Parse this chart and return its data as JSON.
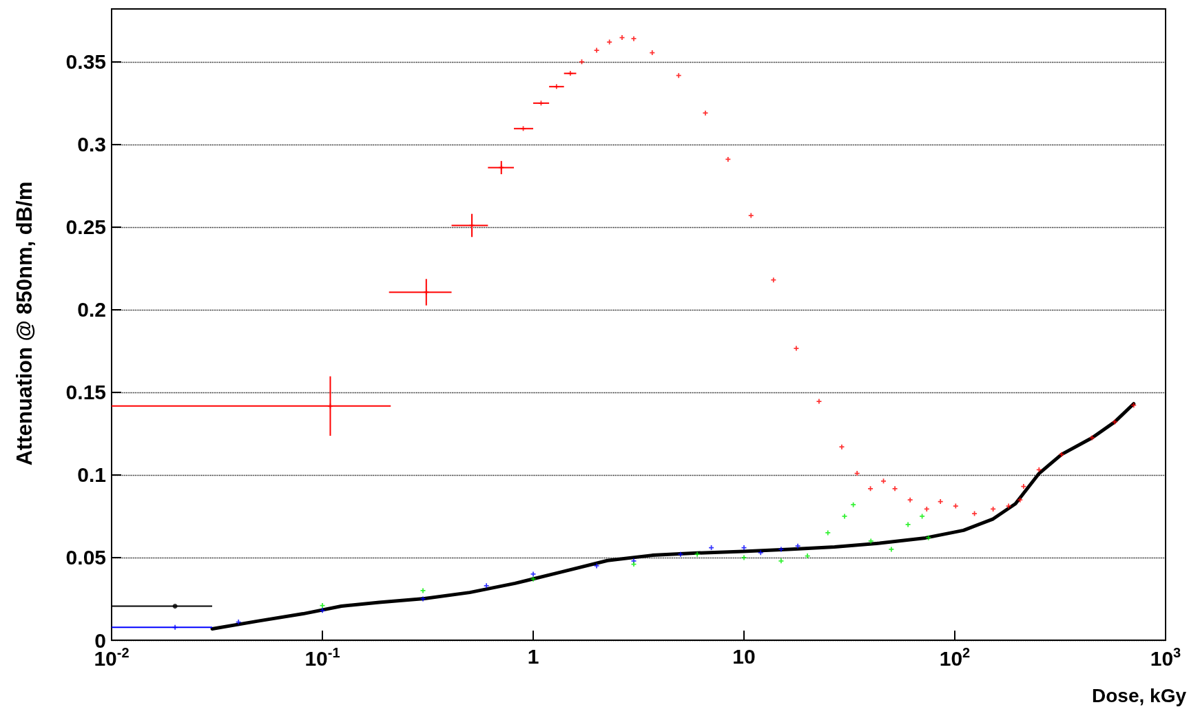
{
  "chart_data": {
    "type": "scatter",
    "xlabel": "Dose, kGy",
    "ylabel": "Attenuation @ 850nm, dB/m",
    "log": "x",
    "grid": "y",
    "legend": false,
    "marker": "cross",
    "xlim": [
      0.01,
      1000
    ],
    "xticks": [
      {
        "value": 0.01,
        "label": "10$^{-2}$"
      },
      {
        "value": 0.1,
        "label": "10$^{-1}$"
      },
      1,
      10,
      {
        "value": 100,
        "label": "10$^{2}$"
      },
      {
        "value": 1000,
        "label": "10$^{3}$"
      }
    ],
    "ylim": [
      0,
      0.382
    ],
    "yticks": [
      0,
      0.05,
      0.1,
      0.15,
      0.2,
      0.25,
      0.3,
      0.35
    ],
    "series": [
      {
        "color": "#ff0000",
        "x": [
          0.109,
          0.311,
          0.512,
          0.706,
          0.897,
          1.09,
          1.29,
          1.5,
          1.7,
          2.0,
          2.3,
          2.64,
          3.0,
          3.67,
          4.9,
          6.56,
          8.4,
          10.8,
          13.8,
          17.7,
          22.7,
          29.1,
          34.4,
          39.8,
          45.9,
          52,
          61.4,
          73.6,
          85.5,
          101,
          124,
          152,
          180,
          204,
          212,
          251,
          321,
          448,
          574,
          706
        ],
        "values": [
          0.1417,
          0.2106,
          0.251,
          0.286,
          0.3096,
          0.325,
          0.335,
          0.343,
          0.35,
          0.357,
          0.362,
          0.3647,
          0.364,
          0.3555,
          0.3417,
          0.319,
          0.291,
          0.257,
          0.218,
          0.1766,
          0.1445,
          0.117,
          0.101,
          0.0917,
          0.0963,
          0.0917,
          0.0849,
          0.0794,
          0.0839,
          0.0812,
          0.0766,
          0.0794,
          0.0812,
          0.0849,
          0.0931,
          0.1032,
          0.1124,
          0.1225,
          0.1321,
          0.1422
        ],
        "xerrors": [
          [
            0.01,
            0.211
          ],
          [
            0.207,
            0.41
          ],
          [
            0.41,
            0.61
          ],
          [
            0.61,
            0.81
          ],
          [
            0.81,
            1.0
          ],
          [
            1.0,
            1.19
          ],
          [
            1.19,
            1.4
          ],
          [
            1.4,
            1.6
          ],
          null,
          null,
          null,
          null,
          null,
          null,
          null,
          null,
          null,
          null,
          null,
          null,
          null,
          null,
          null,
          null,
          null,
          null,
          null,
          null,
          null,
          null,
          null,
          null,
          null,
          null,
          null,
          null,
          null,
          null,
          null,
          null
        ],
        "errors": [
          0.018,
          0.008,
          0.007,
          0.004,
          null,
          null,
          null,
          null,
          null,
          null,
          null,
          null,
          null,
          null,
          null,
          null,
          null,
          null,
          null,
          null,
          null,
          null,
          null,
          null,
          null,
          null,
          null,
          null,
          null,
          null,
          null,
          null,
          null,
          null,
          null,
          null,
          null,
          null,
          null,
          null
        ]
      },
      {
        "color": "#0000ff",
        "x": [
          0.02,
          0.04,
          0.1,
          0.3,
          0.6,
          1.0,
          2.0,
          3.0,
          5.0,
          7.0,
          10,
          12,
          15,
          18
        ],
        "values": [
          0.0078,
          0.011,
          0.018,
          0.025,
          0.033,
          0.04,
          0.045,
          0.048,
          0.052,
          0.056,
          0.056,
          0.053,
          0.055,
          0.057
        ],
        "xerrors": [
          [
            0.01,
            0.03
          ],
          null,
          null,
          null,
          null,
          null,
          null,
          null,
          null,
          null,
          null,
          null,
          null,
          null
        ]
      },
      {
        "color": "#00ee00",
        "x": [
          0.1,
          0.3,
          1,
          3,
          6,
          10,
          15,
          20,
          25,
          30,
          33,
          40,
          50,
          60,
          70,
          75
        ],
        "values": [
          0.021,
          0.03,
          0.037,
          0.046,
          0.052,
          0.05,
          0.048,
          0.051,
          0.065,
          0.075,
          0.082,
          0.06,
          0.055,
          0.07,
          0.075,
          0.062
        ]
      },
      {
        "type": "scatter",
        "marker": "circle",
        "color": "#000000",
        "x": [
          0.02
        ],
        "values": [
          0.0206
        ],
        "xerrors": [
          [
            0.01,
            0.03
          ]
        ]
      },
      {
        "type": "line",
        "marker": "none",
        "color": "#000000",
        "x": [
          0.03,
          0.049,
          0.081,
          0.123,
          0.186,
          0.305,
          0.5,
          0.82,
          1.36,
          2.25,
          3.67,
          6.0,
          9.9,
          16.3,
          26.9,
          44,
          72.5,
          110,
          152,
          194,
          251,
          321,
          448,
          574,
          706
        ],
        "values": [
          0.0069,
          0.0115,
          0.016,
          0.0206,
          0.0229,
          0.0252,
          0.0289,
          0.0344,
          0.0413,
          0.0482,
          0.0514,
          0.0528,
          0.0537,
          0.055,
          0.0564,
          0.0587,
          0.0619,
          0.0665,
          0.0734,
          0.0826,
          0.1009,
          0.1124,
          0.1225,
          0.1321,
          0.1431
        ],
        "xerrors": [
          null,
          null,
          null,
          null,
          null,
          null,
          null,
          null,
          null,
          null,
          null,
          null,
          null,
          null,
          null,
          null,
          null,
          null,
          null,
          null,
          null,
          null,
          null,
          null,
          null
        ]
      }
    ]
  }
}
